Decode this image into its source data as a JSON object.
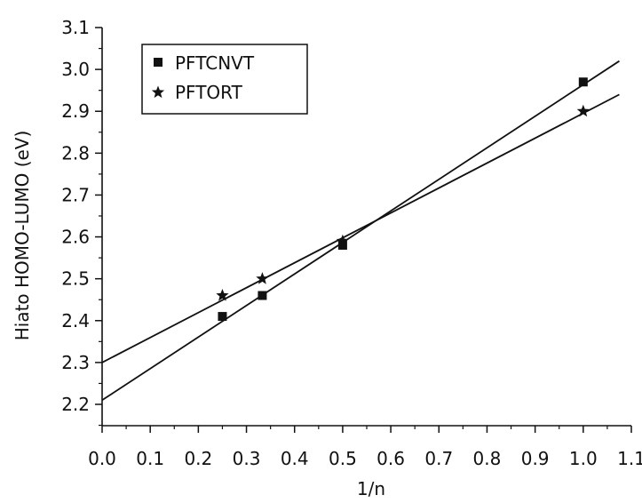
{
  "chart_data": {
    "type": "scatter",
    "xlabel": "1/n",
    "ylabel": "Hiato HOMO-LUMO (eV)",
    "xlim": [
      0.0,
      1.1
    ],
    "ylim": [
      2.15,
      3.1
    ],
    "x_ticks": [
      "0.0",
      "0.1",
      "0.2",
      "0.3",
      "0.4",
      "0.5",
      "0.6",
      "0.7",
      "0.8",
      "0.9",
      "1.0",
      "1.1"
    ],
    "y_ticks": [
      "2.2",
      "2.3",
      "2.4",
      "2.5",
      "2.6",
      "2.7",
      "2.8",
      "2.9",
      "3.0",
      "3.1"
    ],
    "grid": false,
    "legend": "top-left",
    "series": [
      {
        "name": "PFTCNVT",
        "marker": "square",
        "color": "#111111",
        "x": [
          0.25,
          0.333,
          0.5,
          1.0
        ],
        "y": [
          2.41,
          2.46,
          2.58,
          2.97
        ],
        "fit": {
          "x": [
            0.0,
            1.075
          ],
          "y": [
            2.21,
            3.02
          ]
        }
      },
      {
        "name": "PFTORT",
        "marker": "star",
        "color": "#111111",
        "x": [
          0.25,
          0.333,
          0.5,
          1.0
        ],
        "y": [
          2.46,
          2.5,
          2.59,
          2.9
        ],
        "fit": {
          "x": [
            0.0,
            1.075
          ],
          "y": [
            2.3,
            2.94
          ]
        }
      }
    ]
  }
}
